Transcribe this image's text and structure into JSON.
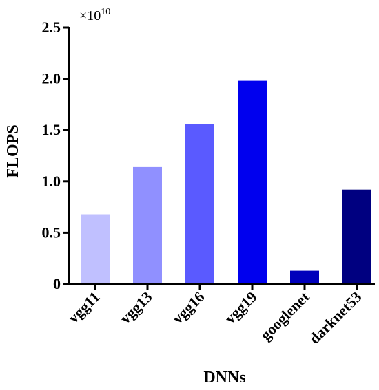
{
  "chart_data": {
    "type": "bar",
    "categories": [
      "vgg11",
      "vgg13",
      "vgg16",
      "vgg19",
      "googlenet",
      "darknet53"
    ],
    "values": [
      0.68,
      1.14,
      1.56,
      1.98,
      0.13,
      0.92
    ],
    "multiplier_label": "×10",
    "multiplier_exponent": "10",
    "xlabel": "DNNs",
    "ylabel": "FLOPS",
    "ylim": [
      0,
      2.5
    ],
    "yticks": [
      "0",
      "0.5",
      "1.0",
      "1.5",
      "2.0",
      "2.5"
    ],
    "ytick_values": [
      0,
      0.5,
      1.0,
      1.5,
      2.0,
      2.5
    ],
    "grid": false,
    "colors": [
      "#c0c0ff",
      "#9090ff",
      "#5a5aff",
      "#0000ee",
      "#0000bb",
      "#000080"
    ]
  }
}
